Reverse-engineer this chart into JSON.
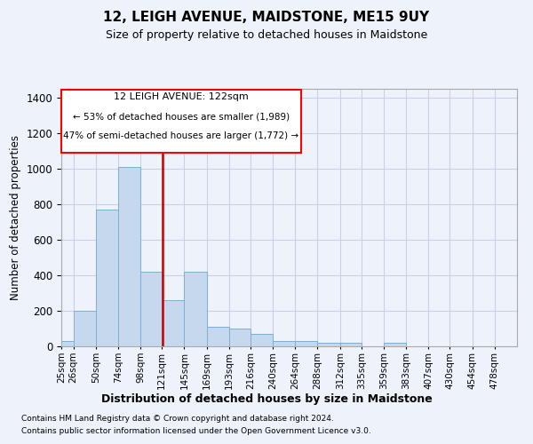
{
  "title": "12, LEIGH AVENUE, MAIDSTONE, ME15 9UY",
  "subtitle": "Size of property relative to detached houses in Maidstone",
  "xlabel": "Distribution of detached houses by size in Maidstone",
  "ylabel": "Number of detached properties",
  "footer_line1": "Contains HM Land Registry data © Crown copyright and database right 2024.",
  "footer_line2": "Contains public sector information licensed under the Open Government Licence v3.0.",
  "annotation_line1": "12 LEIGH AVENUE: 122sqm",
  "annotation_line2": "← 53% of detached houses are smaller (1,989)",
  "annotation_line3": "47% of semi-detached houses are larger (1,772) →",
  "bar_color": "#c5d8ee",
  "bar_edge_color": "#7bafd4",
  "highlight_color": "#cc0000",
  "categories": [
    "25sqm",
    "26sqm",
    "50sqm",
    "74sqm",
    "98sqm",
    "121sqm",
    "145sqm",
    "169sqm",
    "193sqm",
    "216sqm",
    "240sqm",
    "264sqm",
    "288sqm",
    "312sqm",
    "335sqm",
    "359sqm",
    "383sqm",
    "407sqm",
    "430sqm",
    "454sqm",
    "478sqm"
  ],
  "bin_edges": [
    13,
    26,
    50,
    74,
    98,
    121,
    145,
    169,
    193,
    216,
    240,
    264,
    288,
    312,
    335,
    359,
    383,
    407,
    430,
    454,
    478,
    502
  ],
  "values": [
    30,
    200,
    770,
    1010,
    420,
    260,
    420,
    110,
    100,
    70,
    30,
    30,
    20,
    20,
    0,
    20,
    0,
    0,
    0,
    0,
    0
  ],
  "ylim": [
    0,
    1450
  ],
  "yticks": [
    0,
    200,
    400,
    600,
    800,
    1000,
    1200,
    1400
  ],
  "background_color": "#eef2fb",
  "plot_bg_color": "#eef2fb",
  "grid_color": "#c8d0e8"
}
